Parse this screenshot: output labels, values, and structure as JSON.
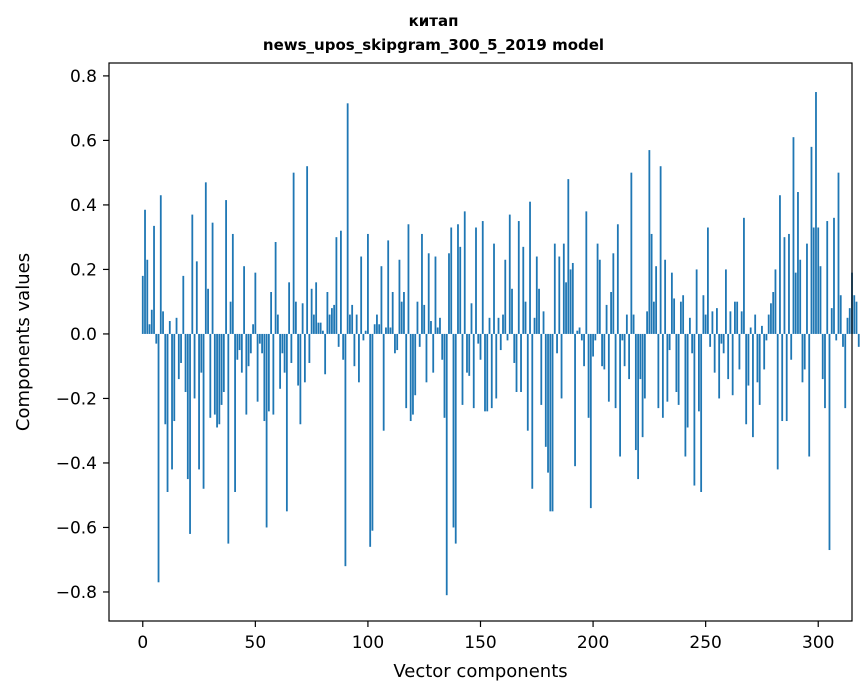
{
  "chart_data": {
    "type": "bar",
    "title": "китап",
    "subtitle": "news_upos_skipgram_300_5_2019 model",
    "xlabel": "Vector components",
    "ylabel": "Components values",
    "xlim": [
      -15,
      315
    ],
    "ylim": [
      -0.89,
      0.84
    ],
    "xticks": [
      0,
      50,
      100,
      150,
      200,
      250,
      300
    ],
    "xtick_labels": [
      "0",
      "50",
      "100",
      "150",
      "200",
      "250",
      "300"
    ],
    "yticks": [
      -0.8,
      -0.6,
      -0.4,
      -0.2,
      0.0,
      0.2,
      0.4,
      0.6,
      0.8
    ],
    "ytick_labels": [
      "−0.8",
      "−0.6",
      "−0.4",
      "−0.2",
      "0.0",
      "0.2",
      "0.4",
      "0.6",
      "0.8"
    ],
    "grid": false,
    "bar_color": "#1f77b4",
    "values": [
      0.18,
      0.385,
      0.23,
      0.03,
      0.075,
      0.335,
      -0.03,
      -0.77,
      0.43,
      0.07,
      -0.28,
      -0.49,
      0.04,
      -0.42,
      -0.27,
      0.05,
      -0.14,
      -0.09,
      0.18,
      -0.18,
      -0.45,
      -0.62,
      0.37,
      -0.2,
      0.225,
      -0.42,
      -0.12,
      -0.48,
      0.47,
      0.14,
      -0.26,
      0.345,
      -0.25,
      -0.29,
      -0.28,
      -0.22,
      -0.18,
      0.415,
      -0.65,
      0.1,
      0.31,
      -0.49,
      -0.08,
      -0.05,
      -0.12,
      0.21,
      -0.25,
      -0.1,
      -0.06,
      0.03,
      0.19,
      -0.21,
      -0.03,
      -0.06,
      -0.27,
      -0.6,
      -0.24,
      0.13,
      -0.25,
      0.285,
      0.06,
      -0.17,
      -0.06,
      -0.12,
      -0.55,
      0.16,
      -0.09,
      0.5,
      0.1,
      -0.16,
      -0.28,
      0.095,
      -0.15,
      0.52,
      -0.09,
      0.14,
      0.06,
      0.16,
      0.035,
      0.035,
      0.01,
      -0.125,
      0.13,
      0.06,
      0.08,
      0.09,
      0.3,
      -0.04,
      0.32,
      -0.08,
      -0.72,
      0.715,
      0.06,
      0.09,
      -0.1,
      0.06,
      -0.15,
      0.24,
      -0.02,
      0.01,
      0.31,
      -0.66,
      -0.61,
      0.03,
      0.06,
      0.03,
      0.21,
      -0.3,
      0.02,
      0.29,
      0.02,
      0.13,
      -0.06,
      -0.05,
      0.23,
      0.1,
      0.13,
      -0.23,
      0.34,
      -0.27,
      -0.25,
      -0.19,
      0.1,
      -0.04,
      0.31,
      0.09,
      -0.15,
      0.25,
      0.04,
      -0.12,
      0.24,
      0.02,
      0.05,
      -0.08,
      -0.26,
      -0.81,
      0.25,
      0.33,
      -0.6,
      -0.65,
      0.34,
      0.27,
      -0.22,
      0.38,
      -0.12,
      -0.13,
      0.095,
      -0.23,
      0.33,
      -0.03,
      -0.08,
      0.35,
      -0.24,
      -0.24,
      0.05,
      -0.23,
      0.28,
      -0.2,
      0.05,
      -0.05,
      0.06,
      0.23,
      -0.02,
      0.37,
      0.14,
      -0.09,
      -0.18,
      0.35,
      -0.18,
      0.27,
      0.1,
      -0.3,
      0.41,
      -0.48,
      0.05,
      0.24,
      0.14,
      -0.22,
      0.07,
      -0.35,
      -0.43,
      -0.55,
      -0.55,
      0.28,
      -0.06,
      0.24,
      -0.2,
      0.28,
      0.16,
      0.48,
      0.2,
      0.22,
      -0.41,
      0.01,
      0.02,
      -0.02,
      -0.1,
      0.38,
      -0.26,
      -0.54,
      -0.07,
      -0.02,
      0.28,
      0.23,
      -0.1,
      -0.11,
      0.09,
      -0.21,
      0.13,
      0.25,
      -0.23,
      0.34,
      -0.38,
      -0.02,
      -0.1,
      0.06,
      -0.14,
      0.5,
      0.06,
      -0.36,
      -0.45,
      -0.14,
      -0.32,
      -0.2,
      0.07,
      0.57,
      0.31,
      0.1,
      0.21,
      -0.23,
      0.52,
      -0.26,
      0.23,
      -0.21,
      -0.05,
      0.19,
      0.11,
      -0.18,
      -0.22,
      0.1,
      0.12,
      -0.38,
      -0.29,
      0.05,
      -0.06,
      -0.47,
      0.2,
      -0.24,
      -0.49,
      0.12,
      0.06,
      0.33,
      -0.04,
      0.07,
      -0.12,
      0.08,
      -0.2,
      -0.03,
      -0.06,
      0.2,
      -0.14,
      0.07,
      -0.19,
      0.1,
      0.1,
      -0.11,
      0.07,
      0.36,
      -0.28,
      -0.16,
      0.02,
      -0.32,
      0.06,
      -0.15,
      -0.22,
      0.025,
      -0.11,
      -0.02,
      0.06,
      0.095,
      0.13,
      0.2,
      -0.42,
      0.43,
      -0.27,
      0.3,
      -0.27,
      0.31,
      -0.08,
      0.61,
      0.19,
      0.44,
      0.23,
      -0.15,
      -0.11,
      0.28,
      -0.38,
      0.58,
      0.33,
      0.75,
      0.33,
      0.21,
      -0.14,
      -0.23,
      0.35,
      -0.67,
      0.08,
      0.36,
      -0.02,
      0.5,
      0.12,
      -0.04,
      -0.23,
      0.05,
      0.08,
      0.19,
      0.12,
      0.1,
      -0.04
    ]
  }
}
